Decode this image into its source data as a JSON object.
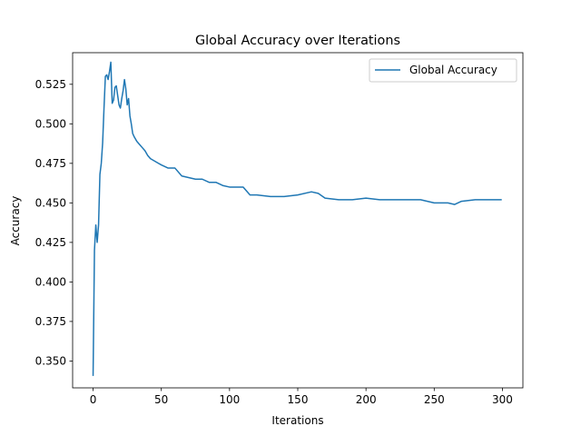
{
  "chart_data": {
    "type": "line",
    "title": "Global Accuracy over Iterations",
    "xlabel": "Iterations",
    "ylabel": "Accuracy",
    "xlim": [
      -15,
      315
    ],
    "ylim": [
      0.333,
      0.545
    ],
    "xticks": [
      0,
      50,
      100,
      150,
      200,
      250,
      300
    ],
    "yticks": [
      0.35,
      0.375,
      0.4,
      0.425,
      0.45,
      0.475,
      0.5,
      0.525
    ],
    "ytick_labels": [
      "0.350",
      "0.375",
      "0.400",
      "0.425",
      "0.450",
      "0.475",
      "0.500",
      "0.525"
    ],
    "grid": false,
    "legend": {
      "position": "top-right",
      "entries": [
        "Global Accuracy"
      ]
    },
    "series": [
      {
        "name": "Global Accuracy",
        "color": "#1f77b4",
        "x": [
          0,
          1,
          2,
          3,
          4,
          5,
          6,
          7,
          8,
          9,
          10,
          11,
          12,
          13,
          14,
          15,
          16,
          17,
          18,
          19,
          20,
          21,
          22,
          23,
          24,
          25,
          26,
          27,
          28,
          29,
          30,
          32,
          34,
          36,
          38,
          40,
          42,
          44,
          46,
          48,
          50,
          55,
          60,
          65,
          70,
          75,
          80,
          85,
          90,
          95,
          100,
          105,
          110,
          115,
          120,
          130,
          140,
          150,
          160,
          165,
          170,
          180,
          190,
          200,
          210,
          220,
          230,
          240,
          250,
          255,
          260,
          265,
          270,
          280,
          290,
          299
        ],
        "y": [
          0.341,
          0.42,
          0.436,
          0.425,
          0.436,
          0.468,
          0.475,
          0.488,
          0.51,
          0.53,
          0.531,
          0.528,
          0.533,
          0.539,
          0.513,
          0.515,
          0.523,
          0.524,
          0.518,
          0.512,
          0.51,
          0.516,
          0.521,
          0.528,
          0.522,
          0.512,
          0.516,
          0.505,
          0.5,
          0.494,
          0.492,
          0.489,
          0.487,
          0.485,
          0.483,
          0.48,
          0.478,
          0.477,
          0.476,
          0.475,
          0.474,
          0.472,
          0.472,
          0.467,
          0.466,
          0.465,
          0.465,
          0.463,
          0.463,
          0.461,
          0.46,
          0.46,
          0.46,
          0.455,
          0.455,
          0.454,
          0.454,
          0.455,
          0.457,
          0.456,
          0.453,
          0.452,
          0.452,
          0.453,
          0.452,
          0.452,
          0.452,
          0.452,
          0.45,
          0.45,
          0.45,
          0.449,
          0.451,
          0.452,
          0.452,
          0.452
        ]
      }
    ]
  }
}
